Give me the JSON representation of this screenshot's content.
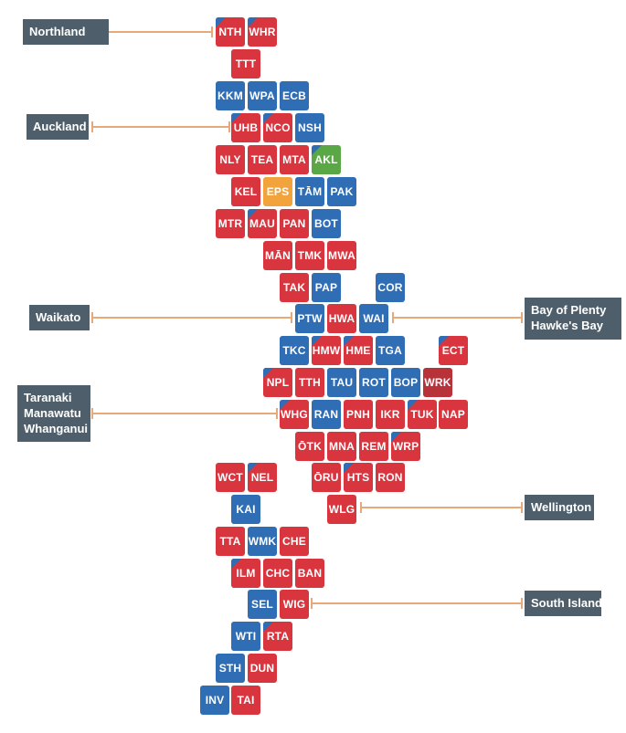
{
  "colors": {
    "red": "#d8353f",
    "blue": "#2f6db5",
    "green": "#5aa746",
    "orange": "#f2a33b",
    "darkred": "#b8323a",
    "region_box": "#4e5f6b",
    "connector": "#e6a97a"
  },
  "regions": [
    {
      "id": "northland",
      "lines": [
        "Northland"
      ]
    },
    {
      "id": "auckland",
      "lines": [
        "Auckland"
      ]
    },
    {
      "id": "waikato",
      "lines": [
        "Waikato"
      ]
    },
    {
      "id": "bop-hawkes-bay",
      "lines": [
        "Bay of Plenty",
        "Hawke's Bay"
      ]
    },
    {
      "id": "taranaki-manawatu-whanganui",
      "lines": [
        "Taranaki",
        "Manawatu",
        "Whanganui"
      ]
    },
    {
      "id": "wellington",
      "lines": [
        "Wellington"
      ]
    },
    {
      "id": "south-island",
      "lines": [
        "South Island"
      ]
    }
  ],
  "electorates": [
    {
      "code": "NTH",
      "color": "red",
      "corner": true
    },
    {
      "code": "WHR",
      "color": "red",
      "corner": true
    },
    {
      "code": "TTT",
      "color": "red"
    },
    {
      "code": "KKM",
      "color": "blue"
    },
    {
      "code": "WPA",
      "color": "blue"
    },
    {
      "code": "ECB",
      "color": "blue"
    },
    {
      "code": "UHB",
      "color": "red",
      "corner": true
    },
    {
      "code": "NCO",
      "color": "red",
      "corner": true
    },
    {
      "code": "NSH",
      "color": "blue"
    },
    {
      "code": "NLY",
      "color": "red"
    },
    {
      "code": "TEA",
      "color": "red"
    },
    {
      "code": "MTA",
      "color": "red"
    },
    {
      "code": "AKL",
      "color": "green",
      "corner": true
    },
    {
      "code": "KEL",
      "color": "red"
    },
    {
      "code": "EPS",
      "color": "orange"
    },
    {
      "code": "TĀM",
      "color": "blue"
    },
    {
      "code": "PAK",
      "color": "blue"
    },
    {
      "code": "MTR",
      "color": "red"
    },
    {
      "code": "MAU",
      "color": "red",
      "corner": true
    },
    {
      "code": "PAN",
      "color": "red"
    },
    {
      "code": "BOT",
      "color": "blue"
    },
    {
      "code": "MĀN",
      "color": "red"
    },
    {
      "code": "TMK",
      "color": "red"
    },
    {
      "code": "MWA",
      "color": "red"
    },
    {
      "code": "TAK",
      "color": "red"
    },
    {
      "code": "PAP",
      "color": "blue"
    },
    {
      "code": "COR",
      "color": "blue"
    },
    {
      "code": "PTW",
      "color": "blue"
    },
    {
      "code": "HWA",
      "color": "red"
    },
    {
      "code": "WAI",
      "color": "blue"
    },
    {
      "code": "TKC",
      "color": "blue"
    },
    {
      "code": "HMW",
      "color": "red",
      "corner": true
    },
    {
      "code": "HME",
      "color": "red",
      "corner": true
    },
    {
      "code": "TGA",
      "color": "blue"
    },
    {
      "code": "ECT",
      "color": "red",
      "corner": true
    },
    {
      "code": "NPL",
      "color": "red",
      "corner": true
    },
    {
      "code": "TTH",
      "color": "red"
    },
    {
      "code": "TAU",
      "color": "blue"
    },
    {
      "code": "ROT",
      "color": "blue"
    },
    {
      "code": "BOP",
      "color": "blue"
    },
    {
      "code": "WRK",
      "color": "darkred"
    },
    {
      "code": "WHG",
      "color": "red",
      "corner": true
    },
    {
      "code": "RAN",
      "color": "blue"
    },
    {
      "code": "PNH",
      "color": "red"
    },
    {
      "code": "IKR",
      "color": "red"
    },
    {
      "code": "TUK",
      "color": "red",
      "corner": true
    },
    {
      "code": "NAP",
      "color": "red"
    },
    {
      "code": "ŌTK",
      "color": "red"
    },
    {
      "code": "MNA",
      "color": "red"
    },
    {
      "code": "REM",
      "color": "red"
    },
    {
      "code": "WRP",
      "color": "red",
      "corner": true
    },
    {
      "code": "WCT",
      "color": "red"
    },
    {
      "code": "NEL",
      "color": "red",
      "corner": true
    },
    {
      "code": "ŌRU",
      "color": "red"
    },
    {
      "code": "HTS",
      "color": "red",
      "corner": true
    },
    {
      "code": "RON",
      "color": "red"
    },
    {
      "code": "KAI",
      "color": "blue"
    },
    {
      "code": "WLG",
      "color": "red"
    },
    {
      "code": "TTA",
      "color": "red"
    },
    {
      "code": "WMK",
      "color": "blue"
    },
    {
      "code": "CHE",
      "color": "red"
    },
    {
      "code": "ILM",
      "color": "red",
      "corner": true
    },
    {
      "code": "CHC",
      "color": "red"
    },
    {
      "code": "BAN",
      "color": "red"
    },
    {
      "code": "SEL",
      "color": "blue"
    },
    {
      "code": "WIG",
      "color": "red"
    },
    {
      "code": "WTI",
      "color": "blue"
    },
    {
      "code": "RTA",
      "color": "red",
      "corner": true
    },
    {
      "code": "STH",
      "color": "blue"
    },
    {
      "code": "DUN",
      "color": "red"
    },
    {
      "code": "INV",
      "color": "blue"
    },
    {
      "code": "TAI",
      "color": "red"
    }
  ]
}
